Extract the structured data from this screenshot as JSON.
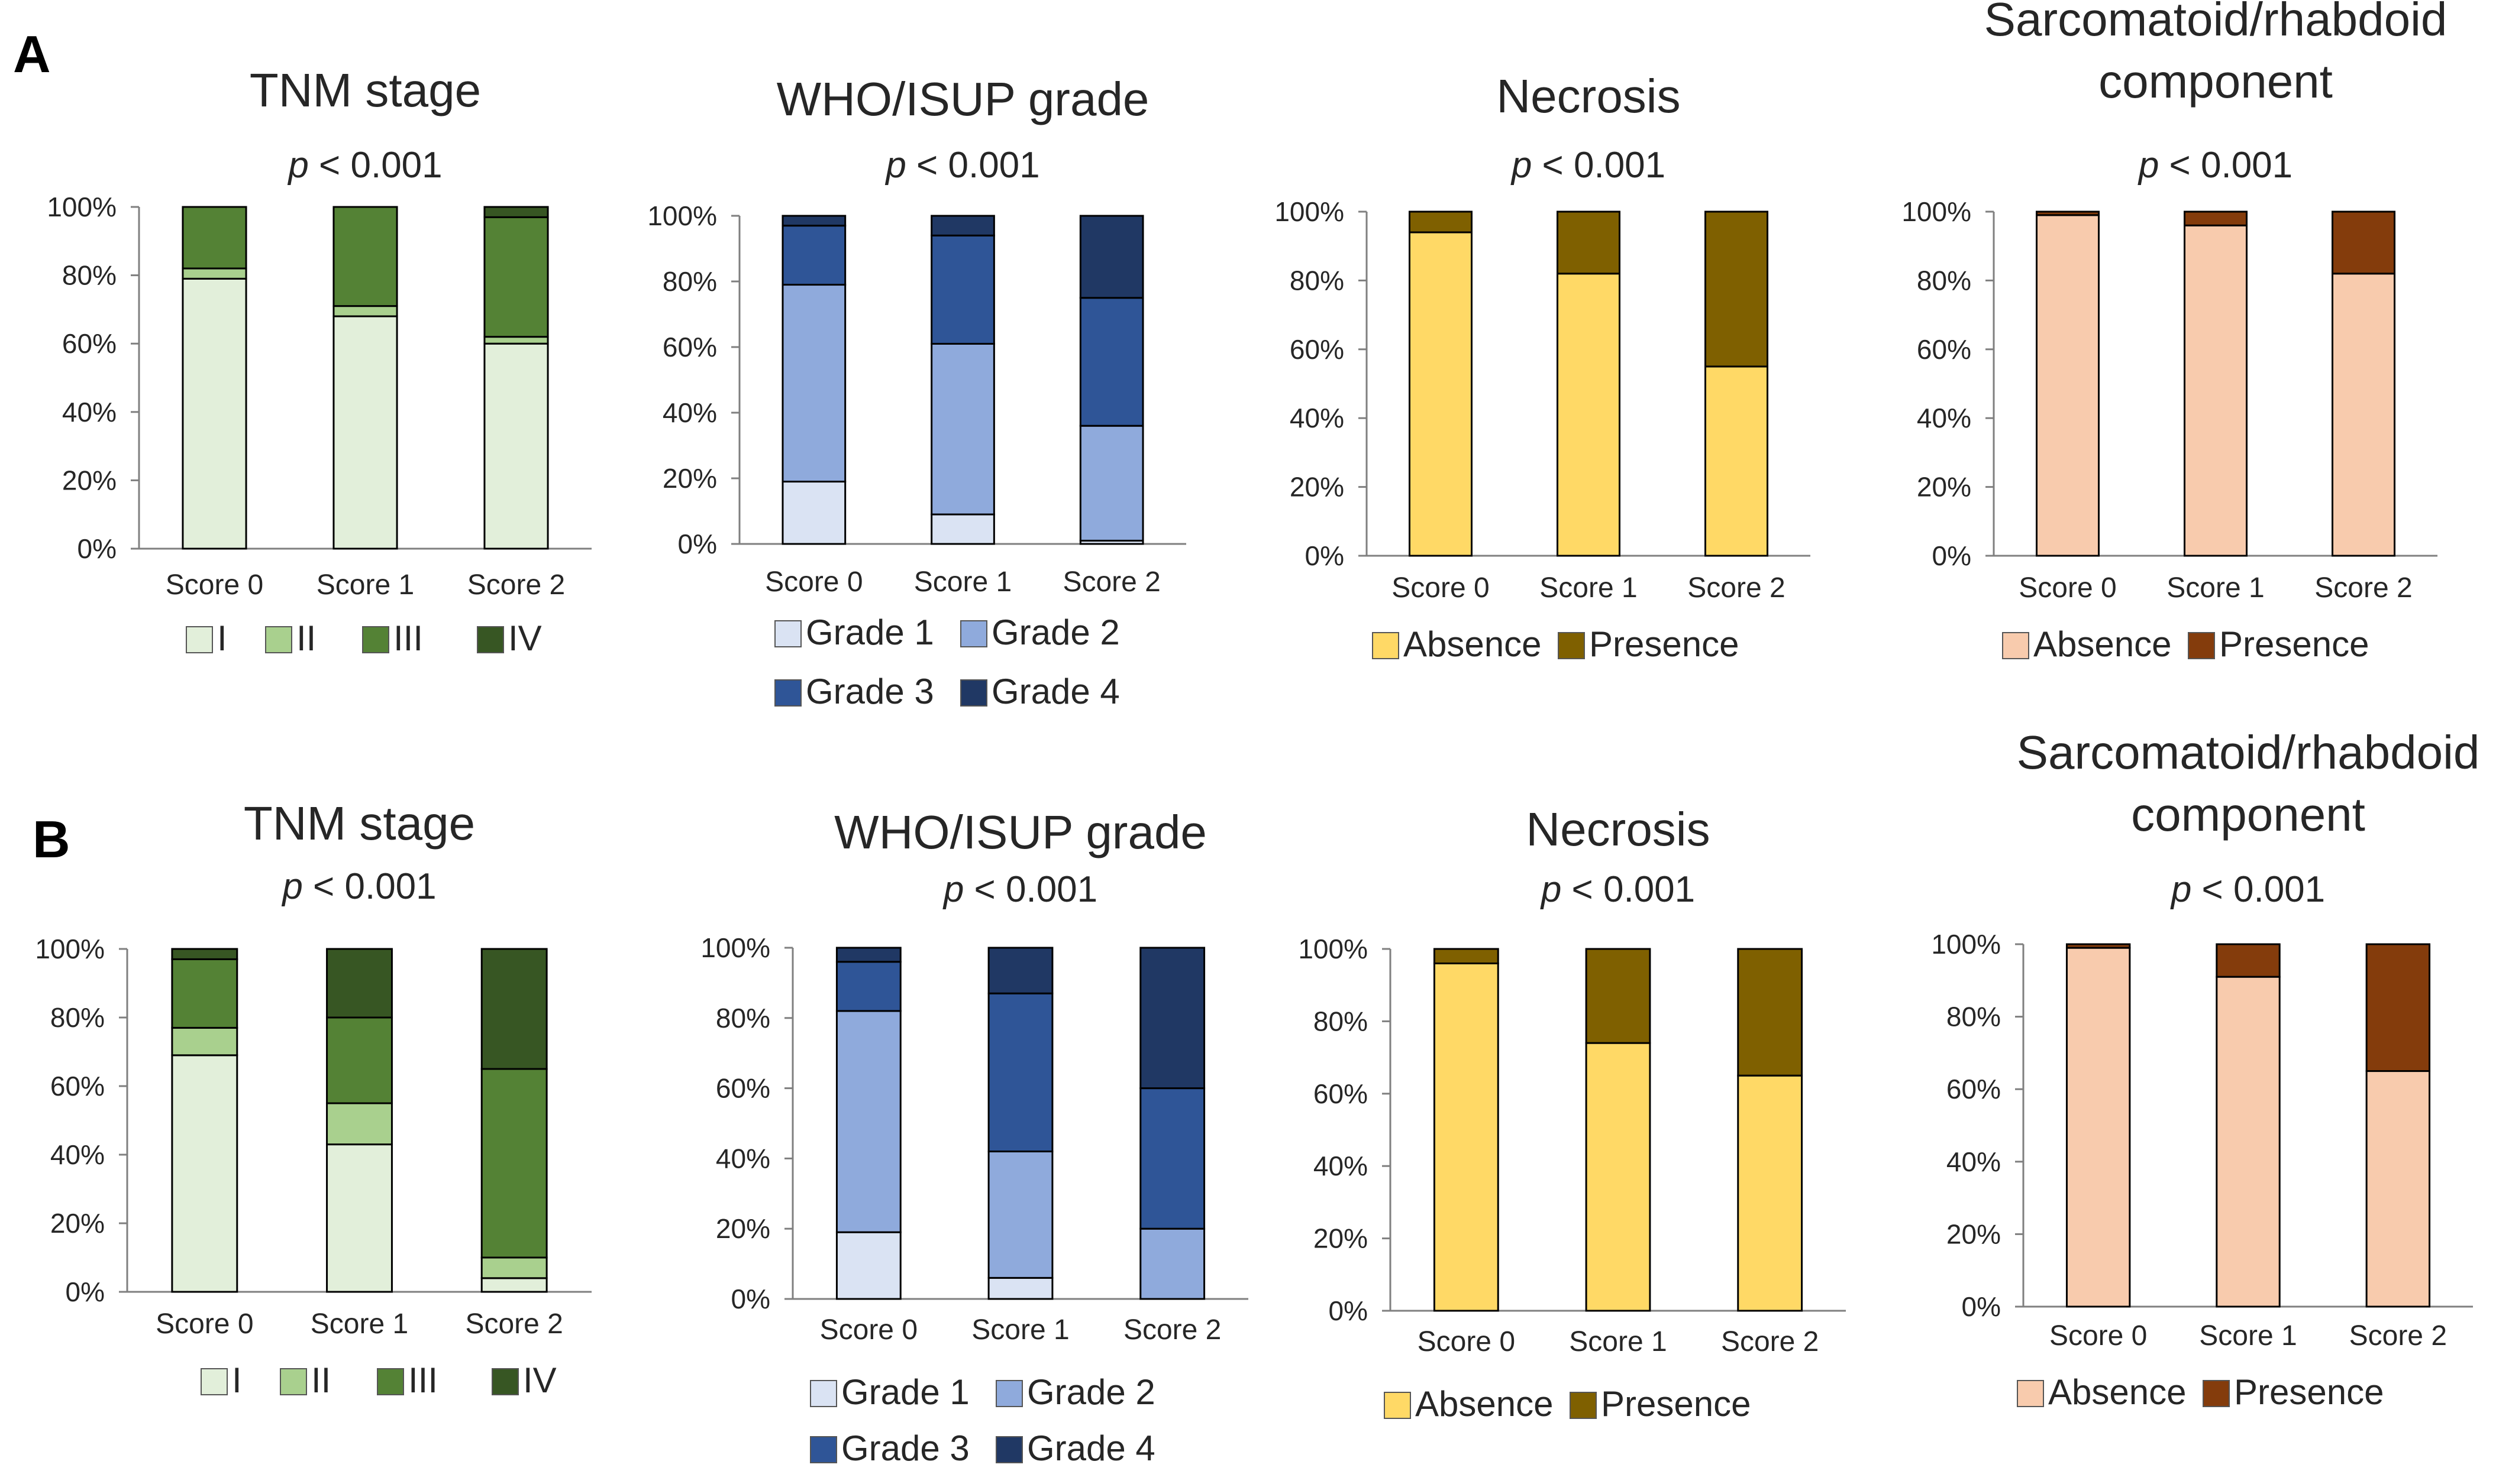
{
  "figure": {
    "panel_labels": [
      "A",
      "B"
    ],
    "p_prefix": "p",
    "p_suffix": " < 0.001"
  },
  "colors": {
    "tnm": [
      "#e2efda",
      "#a9d08e",
      "#548235",
      "#375623"
    ],
    "grade": [
      "#dae3f3",
      "#8faadc",
      "#2f5597",
      "#203864"
    ],
    "necrosis": [
      "#ffd966",
      "#7f6000"
    ],
    "sarcomatoid": [
      "#f8cbad",
      "#843c0c"
    ]
  },
  "chart_data": [
    {
      "type": "bar",
      "stacked": true,
      "panel": "A",
      "title": "TNM stage",
      "p_value": "< 0.001",
      "categories": [
        "Score 0",
        "Score 1",
        "Score 2"
      ],
      "ylim": [
        0,
        100
      ],
      "yticks": [
        "0%",
        "20%",
        "40%",
        "60%",
        "80%",
        "100%"
      ],
      "series": [
        {
          "name": "I",
          "values": [
            79,
            68,
            60
          ]
        },
        {
          "name": "II",
          "values": [
            3,
            3,
            2
          ]
        },
        {
          "name": "III",
          "values": [
            18,
            29,
            35
          ]
        },
        {
          "name": "IV",
          "values": [
            0,
            0,
            3
          ]
        }
      ],
      "legend": [
        "I",
        "II",
        "III",
        "IV"
      ]
    },
    {
      "type": "bar",
      "stacked": true,
      "panel": "A",
      "title": "WHO/ISUP grade",
      "p_value": "< 0.001",
      "categories": [
        "Score 0",
        "Score 1",
        "Score 2"
      ],
      "ylim": [
        0,
        100
      ],
      "yticks": [
        "0%",
        "20%",
        "40%",
        "60%",
        "80%",
        "100%"
      ],
      "series": [
        {
          "name": "Grade 1",
          "values": [
            19,
            9,
            1
          ]
        },
        {
          "name": "Grade 2",
          "values": [
            60,
            52,
            35
          ]
        },
        {
          "name": "Grade 3",
          "values": [
            18,
            33,
            39
          ]
        },
        {
          "name": "Grade 4",
          "values": [
            3,
            6,
            25
          ]
        }
      ],
      "legend": [
        "Grade 1",
        "Grade 2",
        "Grade 3",
        "Grade 4"
      ]
    },
    {
      "type": "bar",
      "stacked": true,
      "panel": "A",
      "title": "Necrosis",
      "p_value": "< 0.001",
      "categories": [
        "Score 0",
        "Score 1",
        "Score 2"
      ],
      "ylim": [
        0,
        100
      ],
      "yticks": [
        "0%",
        "20%",
        "40%",
        "60%",
        "80%",
        "100%"
      ],
      "series": [
        {
          "name": "Absence",
          "values": [
            94,
            82,
            55
          ]
        },
        {
          "name": "Presence",
          "values": [
            6,
            18,
            45
          ]
        }
      ],
      "legend": [
        "Absence",
        "Presence"
      ]
    },
    {
      "type": "bar",
      "stacked": true,
      "panel": "A",
      "title": "Sarcomatoid/rhabdoid component",
      "title_lines": [
        "Sarcomatoid/rhabdoid",
        "component"
      ],
      "p_value": "< 0.001",
      "categories": [
        "Score 0",
        "Score 1",
        "Score 2"
      ],
      "ylim": [
        0,
        100
      ],
      "yticks": [
        "0%",
        "20%",
        "40%",
        "60%",
        "80%",
        "100%"
      ],
      "series": [
        {
          "name": "Absence",
          "values": [
            99,
            96,
            82
          ]
        },
        {
          "name": "Presence",
          "values": [
            1,
            4,
            18
          ]
        }
      ],
      "legend": [
        "Absence",
        "Presence"
      ]
    },
    {
      "type": "bar",
      "stacked": true,
      "panel": "B",
      "title": "TNM stage",
      "p_value": "< 0.001",
      "categories": [
        "Score 0",
        "Score 1",
        "Score 2"
      ],
      "ylim": [
        0,
        100
      ],
      "yticks": [
        "0%",
        "20%",
        "40%",
        "60%",
        "80%",
        "100%"
      ],
      "series": [
        {
          "name": "I",
          "values": [
            69,
            43,
            4
          ]
        },
        {
          "name": "II",
          "values": [
            8,
            12,
            6
          ]
        },
        {
          "name": "III",
          "values": [
            20,
            25,
            55
          ]
        },
        {
          "name": "IV",
          "values": [
            3,
            20,
            35
          ]
        }
      ],
      "legend": [
        "I",
        "II",
        "III",
        "IV"
      ]
    },
    {
      "type": "bar",
      "stacked": true,
      "panel": "B",
      "title": "WHO/ISUP grade",
      "p_value": "< 0.001",
      "categories": [
        "Score 0",
        "Score 1",
        "Score 2"
      ],
      "ylim": [
        0,
        100
      ],
      "yticks": [
        "0%",
        "20%",
        "40%",
        "60%",
        "80%",
        "100%"
      ],
      "series": [
        {
          "name": "Grade 1",
          "values": [
            19,
            6,
            0
          ]
        },
        {
          "name": "Grade 2",
          "values": [
            63,
            36,
            20
          ]
        },
        {
          "name": "Grade 3",
          "values": [
            14,
            45,
            40
          ]
        },
        {
          "name": "Grade 4",
          "values": [
            4,
            13,
            40
          ]
        }
      ],
      "legend": [
        "Grade 1",
        "Grade 2",
        "Grade 3",
        "Grade 4"
      ]
    },
    {
      "type": "bar",
      "stacked": true,
      "panel": "B",
      "title": "Necrosis",
      "p_value": "< 0.001",
      "categories": [
        "Score 0",
        "Score 1",
        "Score 2"
      ],
      "ylim": [
        0,
        100
      ],
      "yticks": [
        "0%",
        "20%",
        "40%",
        "60%",
        "80%",
        "100%"
      ],
      "series": [
        {
          "name": "Absence",
          "values": [
            96,
            74,
            65
          ]
        },
        {
          "name": "Presence",
          "values": [
            4,
            26,
            35
          ]
        }
      ],
      "legend": [
        "Absence",
        "Presence"
      ]
    },
    {
      "type": "bar",
      "stacked": true,
      "panel": "B",
      "title": "Sarcomatoid/rhabdoid component",
      "title_lines": [
        "Sarcomatoid/rhabdoid",
        "component"
      ],
      "p_value": "< 0.001",
      "categories": [
        "Score 0",
        "Score 1",
        "Score 2"
      ],
      "ylim": [
        0,
        100
      ],
      "yticks": [
        "0%",
        "20%",
        "40%",
        "60%",
        "80%",
        "100%"
      ],
      "series": [
        {
          "name": "Absence",
          "values": [
            99,
            91,
            65
          ]
        },
        {
          "name": "Presence",
          "values": [
            1,
            9,
            35
          ]
        }
      ],
      "legend": [
        "Absence",
        "Presence"
      ]
    }
  ]
}
